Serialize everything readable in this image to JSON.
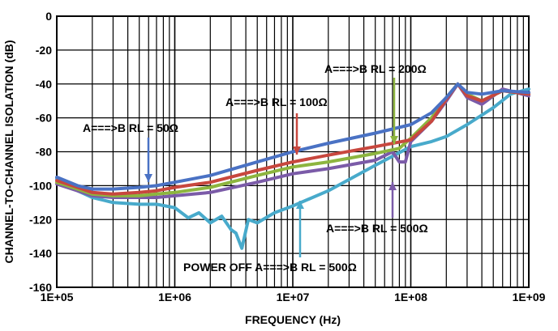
{
  "chart_data": {
    "type": "line",
    "title": "",
    "xlabel": "FREQUENCY (Hz)",
    "ylabel": "CHANNEL-TO-CHANNEL ISOLATION (dB)",
    "x_scale": "log",
    "xlim": [
      100000,
      1000000000
    ],
    "ylim": [
      -160,
      0
    ],
    "x_ticks": [
      100000,
      1000000,
      10000000,
      100000000,
      1000000000
    ],
    "x_tick_labels": [
      "1E+05",
      "1E+06",
      "1E+07",
      "1E+08",
      "1E+09"
    ],
    "y_ticks": [
      0,
      -20,
      -40,
      -60,
      -80,
      -100,
      -120,
      -140,
      -160
    ],
    "y_tick_labels": [
      "0",
      "-20",
      "-40",
      "-60",
      "-80",
      "-100",
      "-120",
      "-140",
      "-160"
    ],
    "grid": true,
    "legend": "none",
    "series": [
      {
        "name": "A===>B RL = 50Ω",
        "color": "#4a72c4",
        "x": [
          100000,
          150000,
          200000,
          300000,
          500000,
          700000,
          1000000,
          2000000,
          5000000,
          10000000,
          20000000,
          50000000,
          100000000,
          150000000,
          200000000,
          250000000,
          300000000,
          400000000,
          600000000,
          1000000000
        ],
        "y": [
          -95,
          -100,
          -102,
          -102,
          -101,
          -100,
          -98,
          -94,
          -86,
          -80,
          -75,
          -69,
          -64,
          -57,
          -48,
          -40,
          -45,
          -46,
          -44,
          -45
        ]
      },
      {
        "name": "A===>B RL = 100Ω",
        "color": "#c8473e",
        "x": [
          100000,
          150000,
          200000,
          300000,
          500000,
          700000,
          1000000,
          2000000,
          5000000,
          10000000,
          20000000,
          50000000,
          100000000,
          150000000,
          200000000,
          250000000,
          300000000,
          400000000,
          600000000,
          1000000000
        ],
        "y": [
          -97,
          -101,
          -104,
          -105,
          -104,
          -103,
          -101,
          -98,
          -91,
          -86,
          -82,
          -77,
          -73,
          -62,
          -49,
          -40,
          -47,
          -50,
          -44,
          -46
        ]
      },
      {
        "name": "A===>B RL = 200Ω",
        "color": "#8db53f",
        "x": [
          100000,
          150000,
          200000,
          300000,
          500000,
          700000,
          1000000,
          2000000,
          5000000,
          10000000,
          20000000,
          50000000,
          80000000,
          100000000,
          150000000,
          200000000,
          250000000,
          300000000,
          400000000,
          600000000,
          1000000000
        ],
        "y": [
          -98,
          -102,
          -105,
          -106,
          -106,
          -105,
          -104,
          -101,
          -94,
          -89,
          -86,
          -81,
          -78,
          -72,
          -60,
          -48,
          -40,
          -46,
          -50,
          -44,
          -46
        ]
      },
      {
        "name": "A===>B RL = 500Ω",
        "color": "#7b5ba8",
        "x": [
          100000,
          150000,
          200000,
          300000,
          500000,
          700000,
          1000000,
          2000000,
          5000000,
          10000000,
          20000000,
          50000000,
          70000000,
          80000000,
          90000000,
          100000000,
          150000000,
          200000000,
          250000000,
          300000000,
          400000000,
          600000000,
          1000000000
        ],
        "y": [
          -99,
          -103,
          -106,
          -107,
          -107,
          -107,
          -106,
          -104,
          -98,
          -93,
          -90,
          -85,
          -80,
          -86,
          -86,
          -74,
          -62,
          -50,
          -40,
          -48,
          -52,
          -43,
          -47
        ]
      },
      {
        "name": "POWER OFF A===>B RL = 500Ω",
        "color": "#48aacb",
        "x": [
          100000,
          150000,
          200000,
          300000,
          500000,
          700000,
          1000000,
          1300000,
          1600000,
          2000000,
          2500000,
          3000000,
          3300000,
          3700000,
          4200000,
          5000000,
          7000000,
          10000000,
          20000000,
          50000000,
          100000000,
          150000000,
          200000000,
          300000000,
          500000000,
          700000000,
          1000000000
        ],
        "y": [
          -96,
          -103,
          -107,
          -110,
          -111,
          -111,
          -113,
          -119,
          -116,
          -122,
          -118,
          -126,
          -128,
          -137,
          -120,
          -122,
          -116,
          -112,
          -103,
          -88,
          -77,
          -74,
          -71,
          -64,
          -54,
          -46,
          -43
        ]
      }
    ],
    "annotations": [
      {
        "text": "A===>B RL = 200Ω"
      },
      {
        "text": "A===>B RL = 100Ω"
      },
      {
        "text": "A===>B RL = 50Ω"
      },
      {
        "text": "A===>B RL = 500Ω"
      },
      {
        "text": "POWER OFF A===>B RL = 500Ω"
      }
    ]
  }
}
